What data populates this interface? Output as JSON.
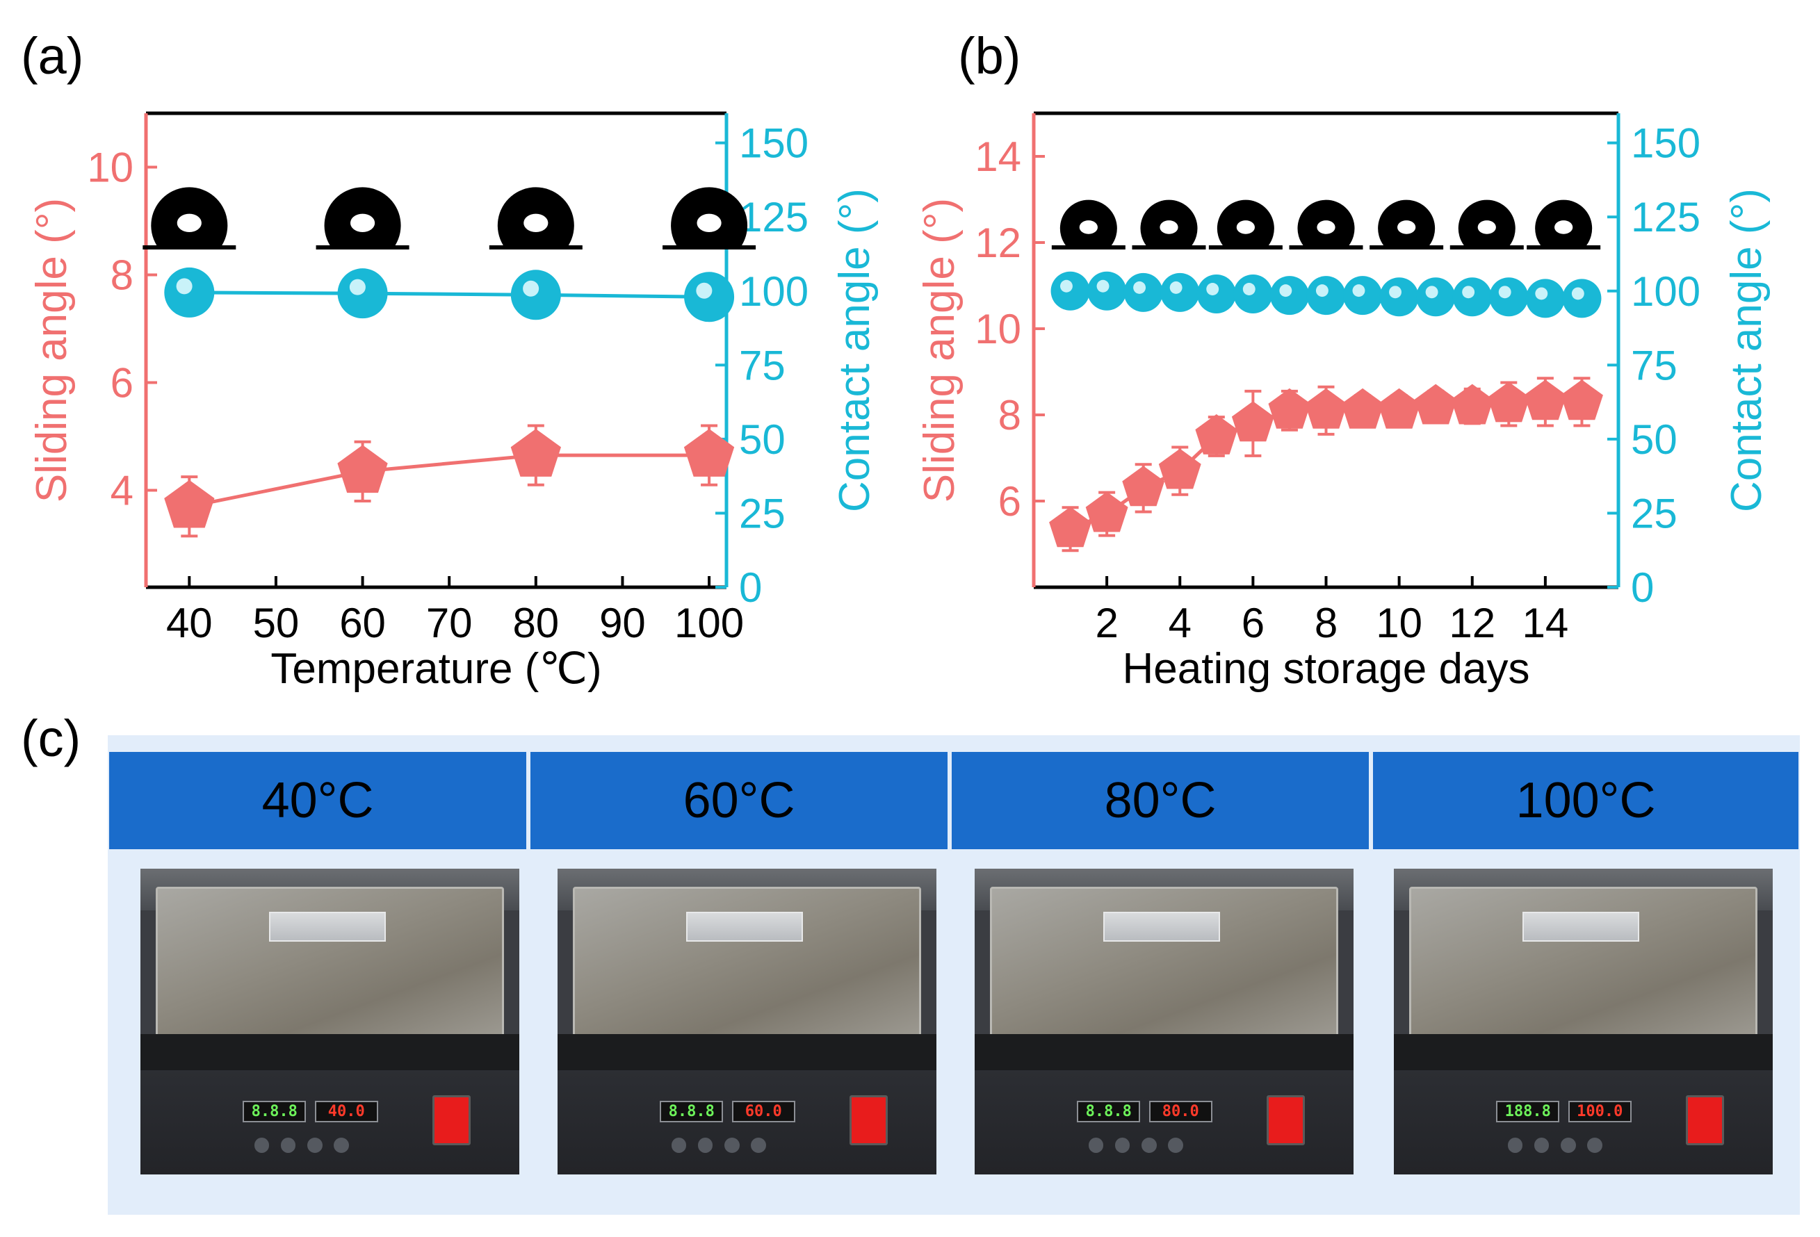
{
  "panels": {
    "a": "(a)",
    "b": "(b)",
    "c": "(c)"
  },
  "colors": {
    "sliding": "#f07070",
    "contact": "#19b8d6",
    "header_bg": "#1a6ccb",
    "panel_bg": "#e2edfa"
  },
  "chart_data": [
    {
      "type": "line",
      "panel": "(a)",
      "xlabel": "Temperature (℃)",
      "ylabel_left": "Sliding angle (°)",
      "ylabel_right": "Contact angle (°)",
      "xlim": [
        35,
        102
      ],
      "xticks": [
        40,
        50,
        60,
        70,
        80,
        90,
        100
      ],
      "ylim_left": [
        2.2,
        11.0
      ],
      "yticks_left": [
        4,
        6,
        8,
        10
      ],
      "ylim_right": [
        0,
        160
      ],
      "yticks_right": [
        0,
        25,
        50,
        75,
        100,
        125,
        150
      ],
      "series": [
        {
          "name": "Sliding angle",
          "axis": "left",
          "marker": "pentagon",
          "x": [
            40,
            60,
            80,
            100
          ],
          "values": [
            3.7,
            4.35,
            4.65,
            4.65
          ],
          "errors": [
            0.55,
            0.55,
            0.55,
            0.55
          ]
        },
        {
          "name": "Contact angle",
          "axis": "right",
          "marker": "circle",
          "x": [
            40,
            60,
            80,
            100
          ],
          "values": [
            99.5,
            99.2,
            98.7,
            98.0
          ],
          "errors": [
            2,
            2,
            2,
            2
          ]
        }
      ],
      "droplet_x": [
        40,
        60,
        80,
        100
      ]
    },
    {
      "type": "line",
      "panel": "(b)",
      "xlabel": "Heating storage days",
      "ylabel_left": "Sliding angle (°)",
      "ylabel_right": "Contact angle (°)",
      "xlim": [
        0,
        16
      ],
      "xticks": [
        2,
        4,
        6,
        8,
        10,
        12,
        14
      ],
      "ylim_left": [
        4.0,
        15.0
      ],
      "yticks_left": [
        6,
        8,
        10,
        12,
        14
      ],
      "ylim_right": [
        0,
        160
      ],
      "yticks_right": [
        0,
        25,
        50,
        75,
        100,
        125,
        150
      ],
      "series": [
        {
          "name": "Sliding angle",
          "axis": "left",
          "marker": "pentagon",
          "x": [
            1,
            2,
            3,
            4,
            5,
            6,
            7,
            8,
            9,
            10,
            11,
            12,
            13,
            14,
            15
          ],
          "values": [
            5.35,
            5.7,
            6.3,
            6.7,
            7.5,
            7.8,
            8.1,
            8.1,
            8.1,
            8.1,
            8.2,
            8.2,
            8.25,
            8.3,
            8.3
          ],
          "errors": [
            0.5,
            0.5,
            0.55,
            0.55,
            0.45,
            0.75,
            0.45,
            0.55,
            0.35,
            0.35,
            0.35,
            0.4,
            0.5,
            0.55,
            0.55
          ]
        },
        {
          "name": "Contact angle",
          "axis": "right",
          "marker": "circle",
          "x": [
            1,
            2,
            3,
            4,
            5,
            6,
            7,
            8,
            9,
            10,
            11,
            12,
            13,
            14,
            15
          ],
          "values": [
            100,
            100,
            99.5,
            99.5,
            99,
            99,
            98.5,
            98.5,
            98.5,
            98,
            98,
            98,
            98,
            97.5,
            97.5
          ],
          "errors": [
            2,
            2,
            2,
            2,
            2,
            2,
            2,
            2,
            2,
            2,
            2,
            2,
            2,
            2,
            2
          ]
        }
      ],
      "droplet_x": [
        1.5,
        3.7,
        5.8,
        8,
        10.2,
        12.4,
        14.5
      ]
    }
  ],
  "photo_panels": [
    {
      "label": "40°C",
      "actual_display": "8.8.8",
      "set_display": "40.0"
    },
    {
      "label": "60°C",
      "actual_display": "8.8.8",
      "set_display": "60.0"
    },
    {
      "label": "80°C",
      "actual_display": "8.8.8",
      "set_display": "80.0"
    },
    {
      "label": "100°C",
      "actual_display": "188.8",
      "set_display": "100.0"
    }
  ]
}
